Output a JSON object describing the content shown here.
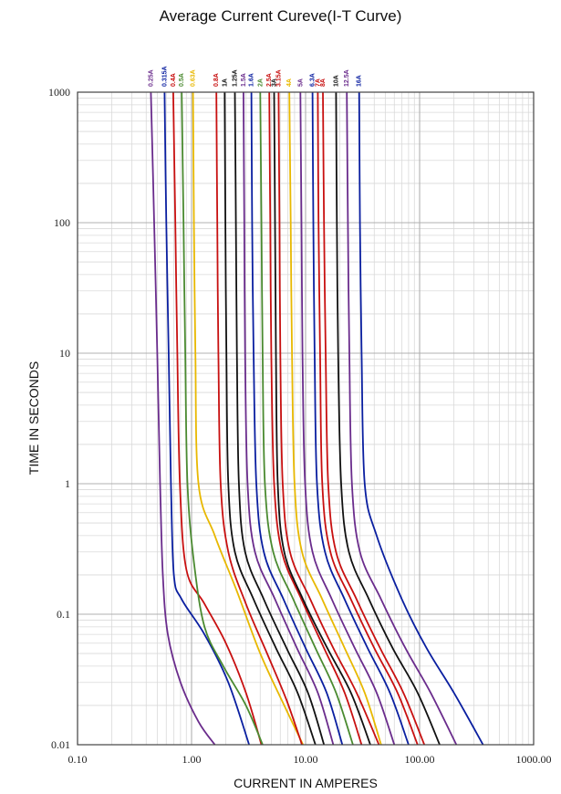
{
  "chart_data": {
    "type": "line",
    "title": "Average Current Cureve(I-T Curve)",
    "xlabel": "CURRENT IN AMPERES",
    "ylabel": "TIME IN SECONDS",
    "x_scale": "log",
    "y_scale": "log",
    "xlim": [
      0.1,
      1000
    ],
    "ylim": [
      0.01,
      1000
    ],
    "grid": true,
    "x_ticks": [
      {
        "value": 0.1,
        "label": "0.10"
      },
      {
        "value": 1,
        "label": "1.00"
      },
      {
        "value": 10,
        "label": "10.00"
      },
      {
        "value": 100,
        "label": "100.00"
      },
      {
        "value": 1000,
        "label": "1000.00"
      }
    ],
    "y_ticks": [
      {
        "value": 0.01,
        "label": "0.01"
      },
      {
        "value": 0.1,
        "label": "0.1"
      },
      {
        "value": 1,
        "label": "1"
      },
      {
        "value": 10,
        "label": "10"
      },
      {
        "value": 100,
        "label": "100"
      },
      {
        "value": 1000,
        "label": "1000"
      }
    ],
    "series": [
      {
        "name": "0.25A",
        "color": "#6a2c8c",
        "points": [
          [
            0.44,
            1000
          ],
          [
            0.47,
            100
          ],
          [
            0.5,
            10
          ],
          [
            0.53,
            1
          ],
          [
            0.56,
            0.2
          ],
          [
            0.62,
            0.07
          ],
          [
            0.8,
            0.03
          ],
          [
            1.15,
            0.015
          ],
          [
            1.6,
            0.01
          ]
        ]
      },
      {
        "name": "0.315A",
        "color": "#0a1fa0",
        "points": [
          [
            0.58,
            1000
          ],
          [
            0.6,
            100
          ],
          [
            0.63,
            10
          ],
          [
            0.66,
            1
          ],
          [
            0.7,
            0.2
          ],
          [
            0.82,
            0.13
          ],
          [
            1.3,
            0.07
          ],
          [
            2.1,
            0.03
          ],
          [
            3.2,
            0.01
          ]
        ]
      },
      {
        "name": "0.4A",
        "color": "#c81010",
        "points": [
          [
            0.69,
            1000
          ],
          [
            0.72,
            100
          ],
          [
            0.75,
            10
          ],
          [
            0.79,
            1
          ],
          [
            0.9,
            0.22
          ],
          [
            1.3,
            0.12
          ],
          [
            2.0,
            0.06
          ],
          [
            3.0,
            0.025
          ],
          [
            4.1,
            0.01
          ]
        ]
      },
      {
        "name": "0.5A",
        "color": "#4a8a30",
        "points": [
          [
            0.82,
            1000
          ],
          [
            0.85,
            100
          ],
          [
            0.88,
            10
          ],
          [
            0.92,
            1
          ],
          [
            1.05,
            0.25
          ],
          [
            1.3,
            0.08
          ],
          [
            1.9,
            0.04
          ],
          [
            3.0,
            0.02
          ],
          [
            4.2,
            0.01
          ]
        ]
      },
      {
        "name": "0.63A",
        "color": "#e8b800",
        "points": [
          [
            1.03,
            1000
          ],
          [
            1.05,
            100
          ],
          [
            1.08,
            10
          ],
          [
            1.15,
            1
          ],
          [
            1.6,
            0.4
          ],
          [
            2.5,
            0.15
          ],
          [
            4.0,
            0.05
          ],
          [
            6.5,
            0.02
          ],
          [
            9.5,
            0.01
          ]
        ]
      },
      {
        "name": "0.8A",
        "color": "#c81010",
        "points": [
          [
            1.65,
            1000
          ],
          [
            1.68,
            100
          ],
          [
            1.72,
            10
          ],
          [
            1.8,
            1
          ],
          [
            2.1,
            0.3
          ],
          [
            3.0,
            0.12
          ],
          [
            4.6,
            0.05
          ],
          [
            6.8,
            0.022
          ],
          [
            9.3,
            0.01
          ]
        ]
      },
      {
        "name": "1A",
        "color": "#111111",
        "points": [
          [
            1.95,
            1000
          ],
          [
            1.98,
            100
          ],
          [
            2.02,
            10
          ],
          [
            2.1,
            1
          ],
          [
            2.4,
            0.3
          ],
          [
            3.5,
            0.13
          ],
          [
            5.5,
            0.055
          ],
          [
            8.5,
            0.025
          ],
          [
            12.2,
            0.01
          ]
        ]
      },
      {
        "name": "1.25A",
        "color": "#111111",
        "points": [
          [
            2.4,
            1000
          ],
          [
            2.45,
            100
          ],
          [
            2.5,
            10
          ],
          [
            2.6,
            1
          ],
          [
            2.95,
            0.3
          ],
          [
            4.3,
            0.13
          ],
          [
            6.8,
            0.055
          ],
          [
            10.5,
            0.025
          ],
          [
            14.5,
            0.01
          ]
        ]
      },
      {
        "name": "1.5A",
        "color": "#6a2c8c",
        "points": [
          [
            2.85,
            1000
          ],
          [
            2.9,
            100
          ],
          [
            2.95,
            10
          ],
          [
            3.1,
            1
          ],
          [
            3.6,
            0.3
          ],
          [
            5.4,
            0.13
          ],
          [
            8.4,
            0.055
          ],
          [
            12.8,
            0.025
          ],
          [
            17.5,
            0.01
          ]
        ]
      },
      {
        "name": "1.6A",
        "color": "#0a1fa0",
        "points": [
          [
            3.35,
            1000
          ],
          [
            3.4,
            100
          ],
          [
            3.5,
            10
          ],
          [
            3.7,
            1
          ],
          [
            4.3,
            0.3
          ],
          [
            6.4,
            0.13
          ],
          [
            10.0,
            0.055
          ],
          [
            15.3,
            0.025
          ],
          [
            21.0,
            0.01
          ]
        ]
      },
      {
        "name": "2A",
        "color": "#4a8a30",
        "points": [
          [
            4.0,
            1000
          ],
          [
            4.1,
            100
          ],
          [
            4.2,
            10
          ],
          [
            4.4,
            1
          ],
          [
            5.2,
            0.3
          ],
          [
            7.8,
            0.13
          ],
          [
            12.2,
            0.055
          ],
          [
            18.5,
            0.025
          ],
          [
            26.0,
            0.01
          ]
        ]
      },
      {
        "name": "2.5A",
        "color": "#c81010",
        "points": [
          [
            4.8,
            1000
          ],
          [
            4.9,
            100
          ],
          [
            5.0,
            10
          ],
          [
            5.3,
            1
          ],
          [
            6.2,
            0.3
          ],
          [
            9.2,
            0.13
          ],
          [
            14.5,
            0.055
          ],
          [
            22.0,
            0.025
          ],
          [
            31.0,
            0.01
          ]
        ]
      },
      {
        "name": "3A",
        "color": "#111111",
        "points": [
          [
            5.3,
            1000
          ],
          [
            5.4,
            100
          ],
          [
            5.5,
            10
          ],
          [
            5.7,
            1
          ],
          [
            6.5,
            0.3
          ],
          [
            9.5,
            0.13
          ],
          [
            15.5,
            0.055
          ],
          [
            25.0,
            0.025
          ],
          [
            37.0,
            0.01
          ]
        ]
      },
      {
        "name": "3.15A",
        "color": "#c81010",
        "points": [
          [
            5.8,
            1000
          ],
          [
            5.9,
            100
          ],
          [
            6.0,
            10
          ],
          [
            6.3,
            1
          ],
          [
            7.3,
            0.3
          ],
          [
            11.0,
            0.13
          ],
          [
            17.5,
            0.055
          ],
          [
            28.0,
            0.025
          ],
          [
            44.0,
            0.01
          ]
        ]
      },
      {
        "name": "4A",
        "color": "#e8b800",
        "points": [
          [
            7.2,
            1000
          ],
          [
            7.4,
            100
          ],
          [
            7.6,
            10
          ],
          [
            8.0,
            1
          ],
          [
            9.3,
            0.3
          ],
          [
            14.0,
            0.13
          ],
          [
            22.0,
            0.055
          ],
          [
            33.0,
            0.025
          ],
          [
            46.0,
            0.01
          ]
        ]
      },
      {
        "name": "5A",
        "color": "#6a2c8c",
        "points": [
          [
            9.0,
            1000
          ],
          [
            9.2,
            100
          ],
          [
            9.4,
            10
          ],
          [
            9.9,
            1
          ],
          [
            11.5,
            0.3
          ],
          [
            17.0,
            0.13
          ],
          [
            27.0,
            0.055
          ],
          [
            42.0,
            0.025
          ],
          [
            60.0,
            0.01
          ]
        ]
      },
      {
        "name": "6.3A",
        "color": "#0a1fa0",
        "points": [
          [
            11.5,
            1000
          ],
          [
            11.7,
            100
          ],
          [
            12.0,
            10
          ],
          [
            12.6,
            1
          ],
          [
            14.8,
            0.3
          ],
          [
            22.0,
            0.13
          ],
          [
            35.0,
            0.055
          ],
          [
            55.0,
            0.025
          ],
          [
            80.0,
            0.01
          ]
        ]
      },
      {
        "name": "7A",
        "color": "#c81010",
        "points": [
          [
            12.8,
            1000
          ],
          [
            13.0,
            100
          ],
          [
            13.4,
            10
          ],
          [
            14.0,
            1
          ],
          [
            16.5,
            0.3
          ],
          [
            25.0,
            0.13
          ],
          [
            40.0,
            0.055
          ],
          [
            64.0,
            0.025
          ],
          [
            96.0,
            0.01
          ]
        ]
      },
      {
        "name": "8A",
        "color": "#c81010",
        "points": [
          [
            14.2,
            1000
          ],
          [
            14.5,
            100
          ],
          [
            15.0,
            10
          ],
          [
            15.8,
            1
          ],
          [
            18.5,
            0.3
          ],
          [
            28.0,
            0.13
          ],
          [
            45.0,
            0.055
          ],
          [
            72.0,
            0.025
          ],
          [
            110.0,
            0.01
          ]
        ]
      },
      {
        "name": "10A",
        "color": "#111111",
        "points": [
          [
            18.5,
            1000
          ],
          [
            18.8,
            100
          ],
          [
            19.3,
            10
          ],
          [
            20.5,
            1
          ],
          [
            24.0,
            0.3
          ],
          [
            36.0,
            0.13
          ],
          [
            58.0,
            0.055
          ],
          [
            96.0,
            0.025
          ],
          [
            150.0,
            0.01
          ]
        ]
      },
      {
        "name": "12.5A",
        "color": "#6a2c8c",
        "points": [
          [
            23.0,
            1000
          ],
          [
            23.5,
            100
          ],
          [
            24.2,
            10
          ],
          [
            25.5,
            1
          ],
          [
            30.0,
            0.3
          ],
          [
            46.0,
            0.13
          ],
          [
            75.0,
            0.055
          ],
          [
            125.0,
            0.025
          ],
          [
            210.0,
            0.01
          ]
        ]
      },
      {
        "name": "16A",
        "color": "#0a1fa0",
        "points": [
          [
            29.5,
            1000
          ],
          [
            30.0,
            100
          ],
          [
            31.0,
            10
          ],
          [
            33.0,
            1
          ],
          [
            42.0,
            0.4
          ],
          [
            70.0,
            0.13
          ],
          [
            115.0,
            0.055
          ],
          [
            200.0,
            0.025
          ],
          [
            360.0,
            0.01
          ]
        ]
      }
    ]
  }
}
